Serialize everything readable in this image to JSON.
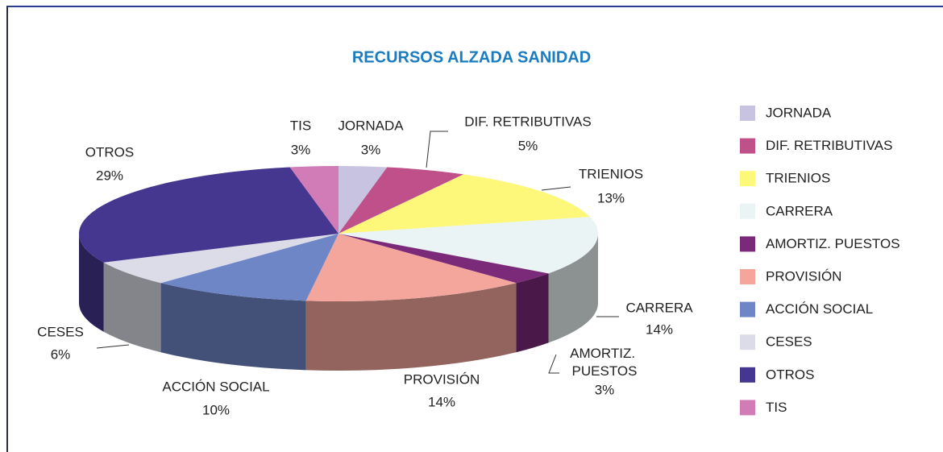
{
  "chart_data": {
    "type": "pie3d",
    "title": "RECURSOS ALZADA SANIDAD",
    "categories": [
      "JORNADA",
      "DIF. RETRIBUTIVAS",
      "TRIENIOS",
      "CARRERA",
      "AMORTIZ. PUESTOS",
      "PROVISIÓN",
      "ACCIÓN SOCIAL",
      "CESES",
      "OTROS",
      "TIS"
    ],
    "values": [
      3,
      5,
      13,
      14,
      3,
      14,
      10,
      6,
      29,
      3
    ],
    "value_labels": [
      "3%",
      "5%",
      "13%",
      "14%",
      "3%",
      "14%",
      "10%",
      "6%",
      "29%",
      "3%"
    ],
    "colors": [
      "#c8c3e0",
      "#c0508a",
      "#fdf77a",
      "#eaf4f4",
      "#7b2a7a",
      "#f5a69c",
      "#6f86c6",
      "#dcdce8",
      "#45378f",
      "#d17bb7"
    ],
    "legend": "right"
  }
}
